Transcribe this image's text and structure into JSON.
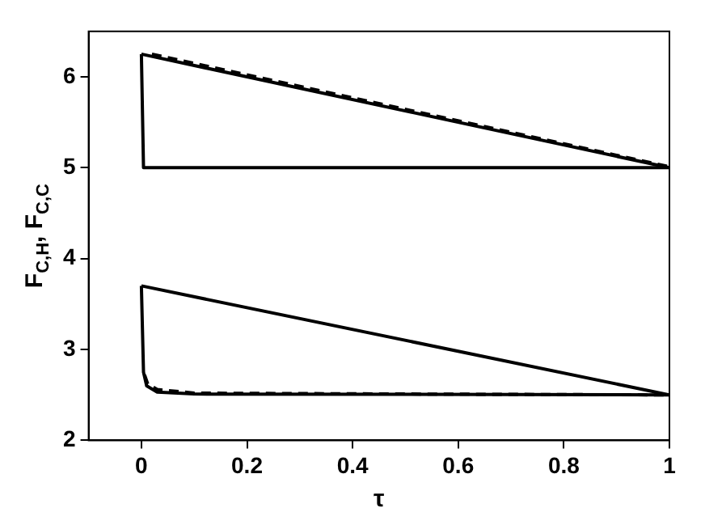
{
  "chart_data": {
    "type": "line",
    "xlabel": "τ",
    "ylabel": "F$_{C,H}$, F$_{C,C}$",
    "xlim": [
      -0.1,
      1
    ],
    "xticks": [
      0,
      0.2,
      0.4,
      0.6,
      0.8,
      1
    ],
    "ylim": [
      2,
      6.5
    ],
    "yticks": [
      2,
      3,
      4,
      5,
      6
    ],
    "grid": false,
    "legend": false,
    "marker": "none",
    "series": [
      {
        "color": "#000000",
        "line_style": "solid",
        "x": [
          0,
          1
        ],
        "values": [
          6.25,
          5
        ]
      },
      {
        "color": "#000000",
        "line_style": "dashed",
        "x": [
          0.02,
          1
        ],
        "values": [
          6.25,
          5.01
        ]
      },
      {
        "color": "#000000",
        "line_style": "solid",
        "x": [
          0,
          0.004,
          1
        ],
        "values": [
          6.25,
          5,
          5
        ]
      },
      {
        "color": "#000000",
        "line_style": "solid",
        "x": [
          0,
          1
        ],
        "values": [
          3.7,
          2.5
        ]
      },
      {
        "color": "#000000",
        "line_style": "solid",
        "x": [
          0,
          0.004,
          0.01,
          0.03,
          0.1,
          1
        ],
        "values": [
          3.7,
          2.75,
          2.6,
          2.53,
          2.51,
          2.5
        ]
      },
      {
        "color": "#000000",
        "line_style": "dashed",
        "x": [
          0.006,
          0.012,
          0.03,
          0.1,
          0.5,
          1
        ],
        "values": [
          2.72,
          2.62,
          2.56,
          2.52,
          2.51,
          2.5
        ]
      }
    ]
  }
}
